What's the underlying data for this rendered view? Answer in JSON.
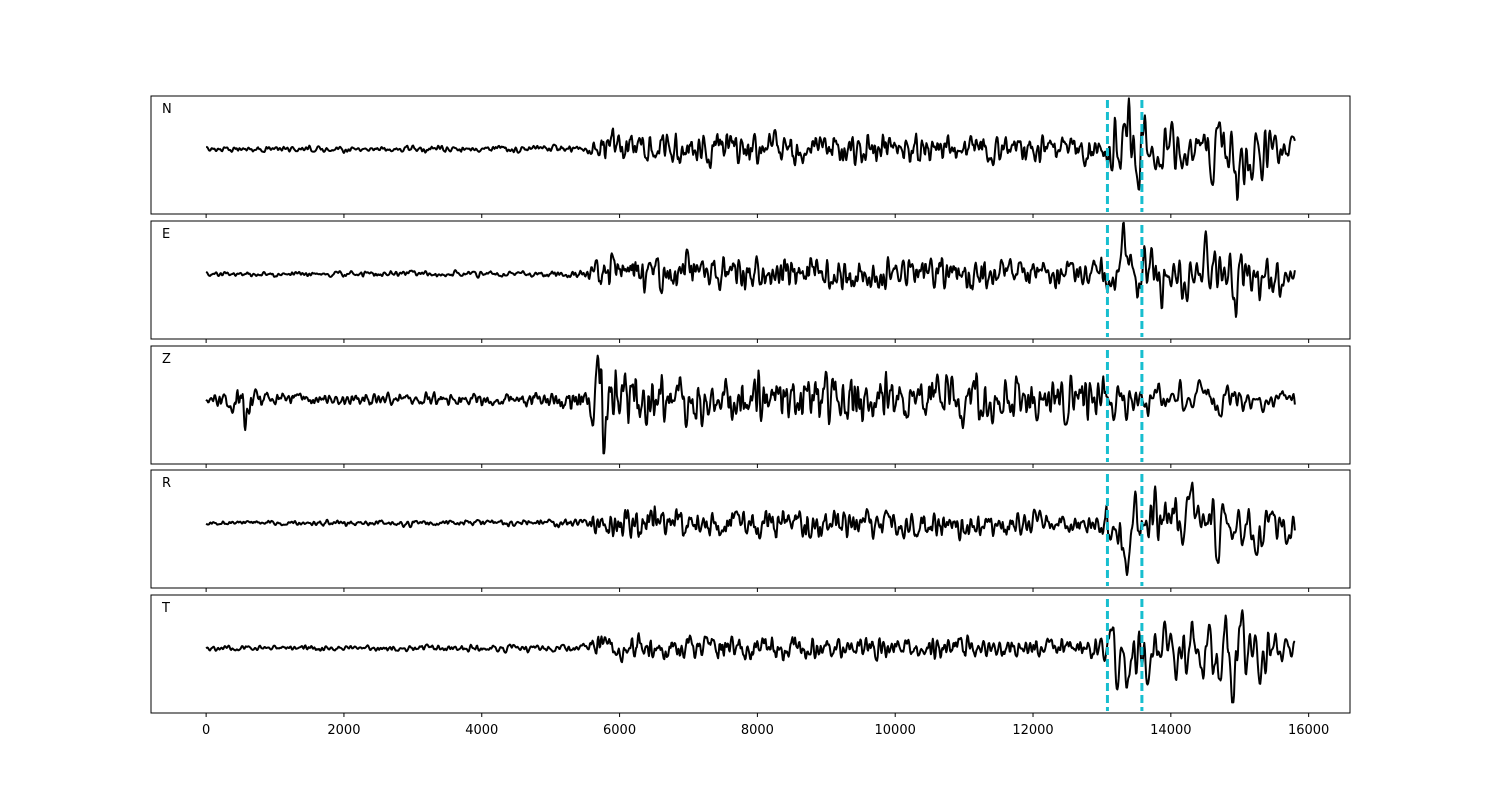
{
  "chart_data": {
    "type": "line",
    "title": "",
    "xlabel": "",
    "ylabel": "",
    "xlim": [
      -800,
      16600
    ],
    "x_ticks": [
      0,
      2000,
      4000,
      6000,
      8000,
      10000,
      12000,
      14000,
      16000
    ],
    "x_tick_labels": [
      "0",
      "2000",
      "4000",
      "6000",
      "8000",
      "10000",
      "12000",
      "14000",
      "16000"
    ],
    "grid": false,
    "y_ticks_shown": false,
    "sample_range": [
      0,
      15800
    ],
    "trace_color": "#000000",
    "marker_color": "#17becf",
    "markers": [
      {
        "x": 13080,
        "style": "dashed"
      },
      {
        "x": 13580,
        "style": "dashed"
      }
    ],
    "panels": [
      {
        "label": "N",
        "envelope": [
          [
            0,
            0.05
          ],
          [
            5500,
            0.08
          ],
          [
            5600,
            0.22
          ],
          [
            5800,
            0.42
          ],
          [
            6200,
            0.34
          ],
          [
            12800,
            0.28
          ],
          [
            13000,
            0.3
          ],
          [
            13150,
            0.9
          ],
          [
            14000,
            0.75
          ],
          [
            15000,
            1.0
          ],
          [
            15800,
            0.55
          ]
        ],
        "events": [
          {
            "x": 14950,
            "amp": -1.0
          },
          {
            "x": 13370,
            "amp": 0.8
          }
        ]
      },
      {
        "label": "E",
        "envelope": [
          [
            0,
            0.05
          ],
          [
            5500,
            0.08
          ],
          [
            5600,
            0.25
          ],
          [
            5800,
            0.38
          ],
          [
            7500,
            0.4
          ],
          [
            12800,
            0.3
          ],
          [
            13000,
            0.35
          ],
          [
            13200,
            0.85
          ],
          [
            14000,
            0.8
          ],
          [
            15000,
            0.95
          ],
          [
            15800,
            0.6
          ]
        ],
        "events": [
          {
            "x": 13300,
            "amp": 0.85
          },
          {
            "x": 14950,
            "amp": -0.95
          }
        ]
      },
      {
        "label": "Z",
        "envelope": [
          [
            0,
            0.1
          ],
          [
            400,
            0.3
          ],
          [
            600,
            0.3
          ],
          [
            900,
            0.12
          ],
          [
            5000,
            0.15
          ],
          [
            5500,
            0.35
          ],
          [
            5700,
            0.7
          ],
          [
            5900,
            0.7
          ],
          [
            6300,
            0.5
          ],
          [
            13000,
            0.45
          ],
          [
            13500,
            0.42
          ],
          [
            15800,
            0.35
          ]
        ],
        "events": [
          {
            "x": 5780,
            "amp": -0.95
          },
          {
            "x": 5700,
            "amp": 0.8
          },
          {
            "x": 580,
            "amp": -0.38
          }
        ]
      },
      {
        "label": "R",
        "envelope": [
          [
            0,
            0.05
          ],
          [
            5500,
            0.08
          ],
          [
            5600,
            0.22
          ],
          [
            5800,
            0.35
          ],
          [
            12800,
            0.25
          ],
          [
            13000,
            0.3
          ],
          [
            13200,
            0.85
          ],
          [
            14000,
            0.85
          ],
          [
            15000,
            0.8
          ],
          [
            15800,
            0.6
          ]
        ],
        "events": [
          {
            "x": 13350,
            "amp": -0.9
          },
          {
            "x": 14300,
            "amp": 0.85
          }
        ]
      },
      {
        "label": "T",
        "envelope": [
          [
            0,
            0.05
          ],
          [
            5500,
            0.08
          ],
          [
            5600,
            0.2
          ],
          [
            5800,
            0.28
          ],
          [
            12800,
            0.2
          ],
          [
            13000,
            0.25
          ],
          [
            13200,
            0.85
          ],
          [
            14000,
            0.7
          ],
          [
            14800,
            0.85
          ],
          [
            15000,
            1.0
          ],
          [
            15800,
            0.55
          ]
        ],
        "events": [
          {
            "x": 13380,
            "amp": -0.85
          },
          {
            "x": 15020,
            "amp": 1.0
          },
          {
            "x": 14900,
            "amp": -0.85
          }
        ]
      }
    ]
  }
}
